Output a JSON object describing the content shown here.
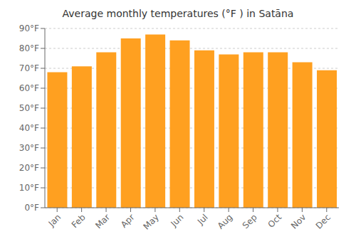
{
  "chart_data": {
    "type": "bar",
    "title": "Average monthly temperatures (°F ) in Satāna",
    "categories": [
      "Jan",
      "Feb",
      "Mar",
      "Apr",
      "May",
      "Jun",
      "Jul",
      "Aug",
      "Sep",
      "Oct",
      "Nov",
      "Dec"
    ],
    "values": [
      68,
      71,
      78,
      85,
      87,
      84,
      79,
      77,
      78,
      78,
      73,
      69
    ],
    "color": "#FFA020",
    "ylim": [
      0,
      90
    ],
    "yticks": [
      {
        "value": 0,
        "label": "0°F"
      },
      {
        "value": 10,
        "label": "10°F"
      },
      {
        "value": 20,
        "label": "20°F"
      },
      {
        "value": 30,
        "label": "30°F"
      },
      {
        "value": 40,
        "label": "40°F"
      },
      {
        "value": 50,
        "label": "50°F"
      },
      {
        "value": 60,
        "label": "60°F"
      },
      {
        "value": 70,
        "label": "70°F"
      },
      {
        "value": 80,
        "label": "80°F"
      },
      {
        "value": 90,
        "label": "90°F"
      }
    ],
    "grid": true
  }
}
